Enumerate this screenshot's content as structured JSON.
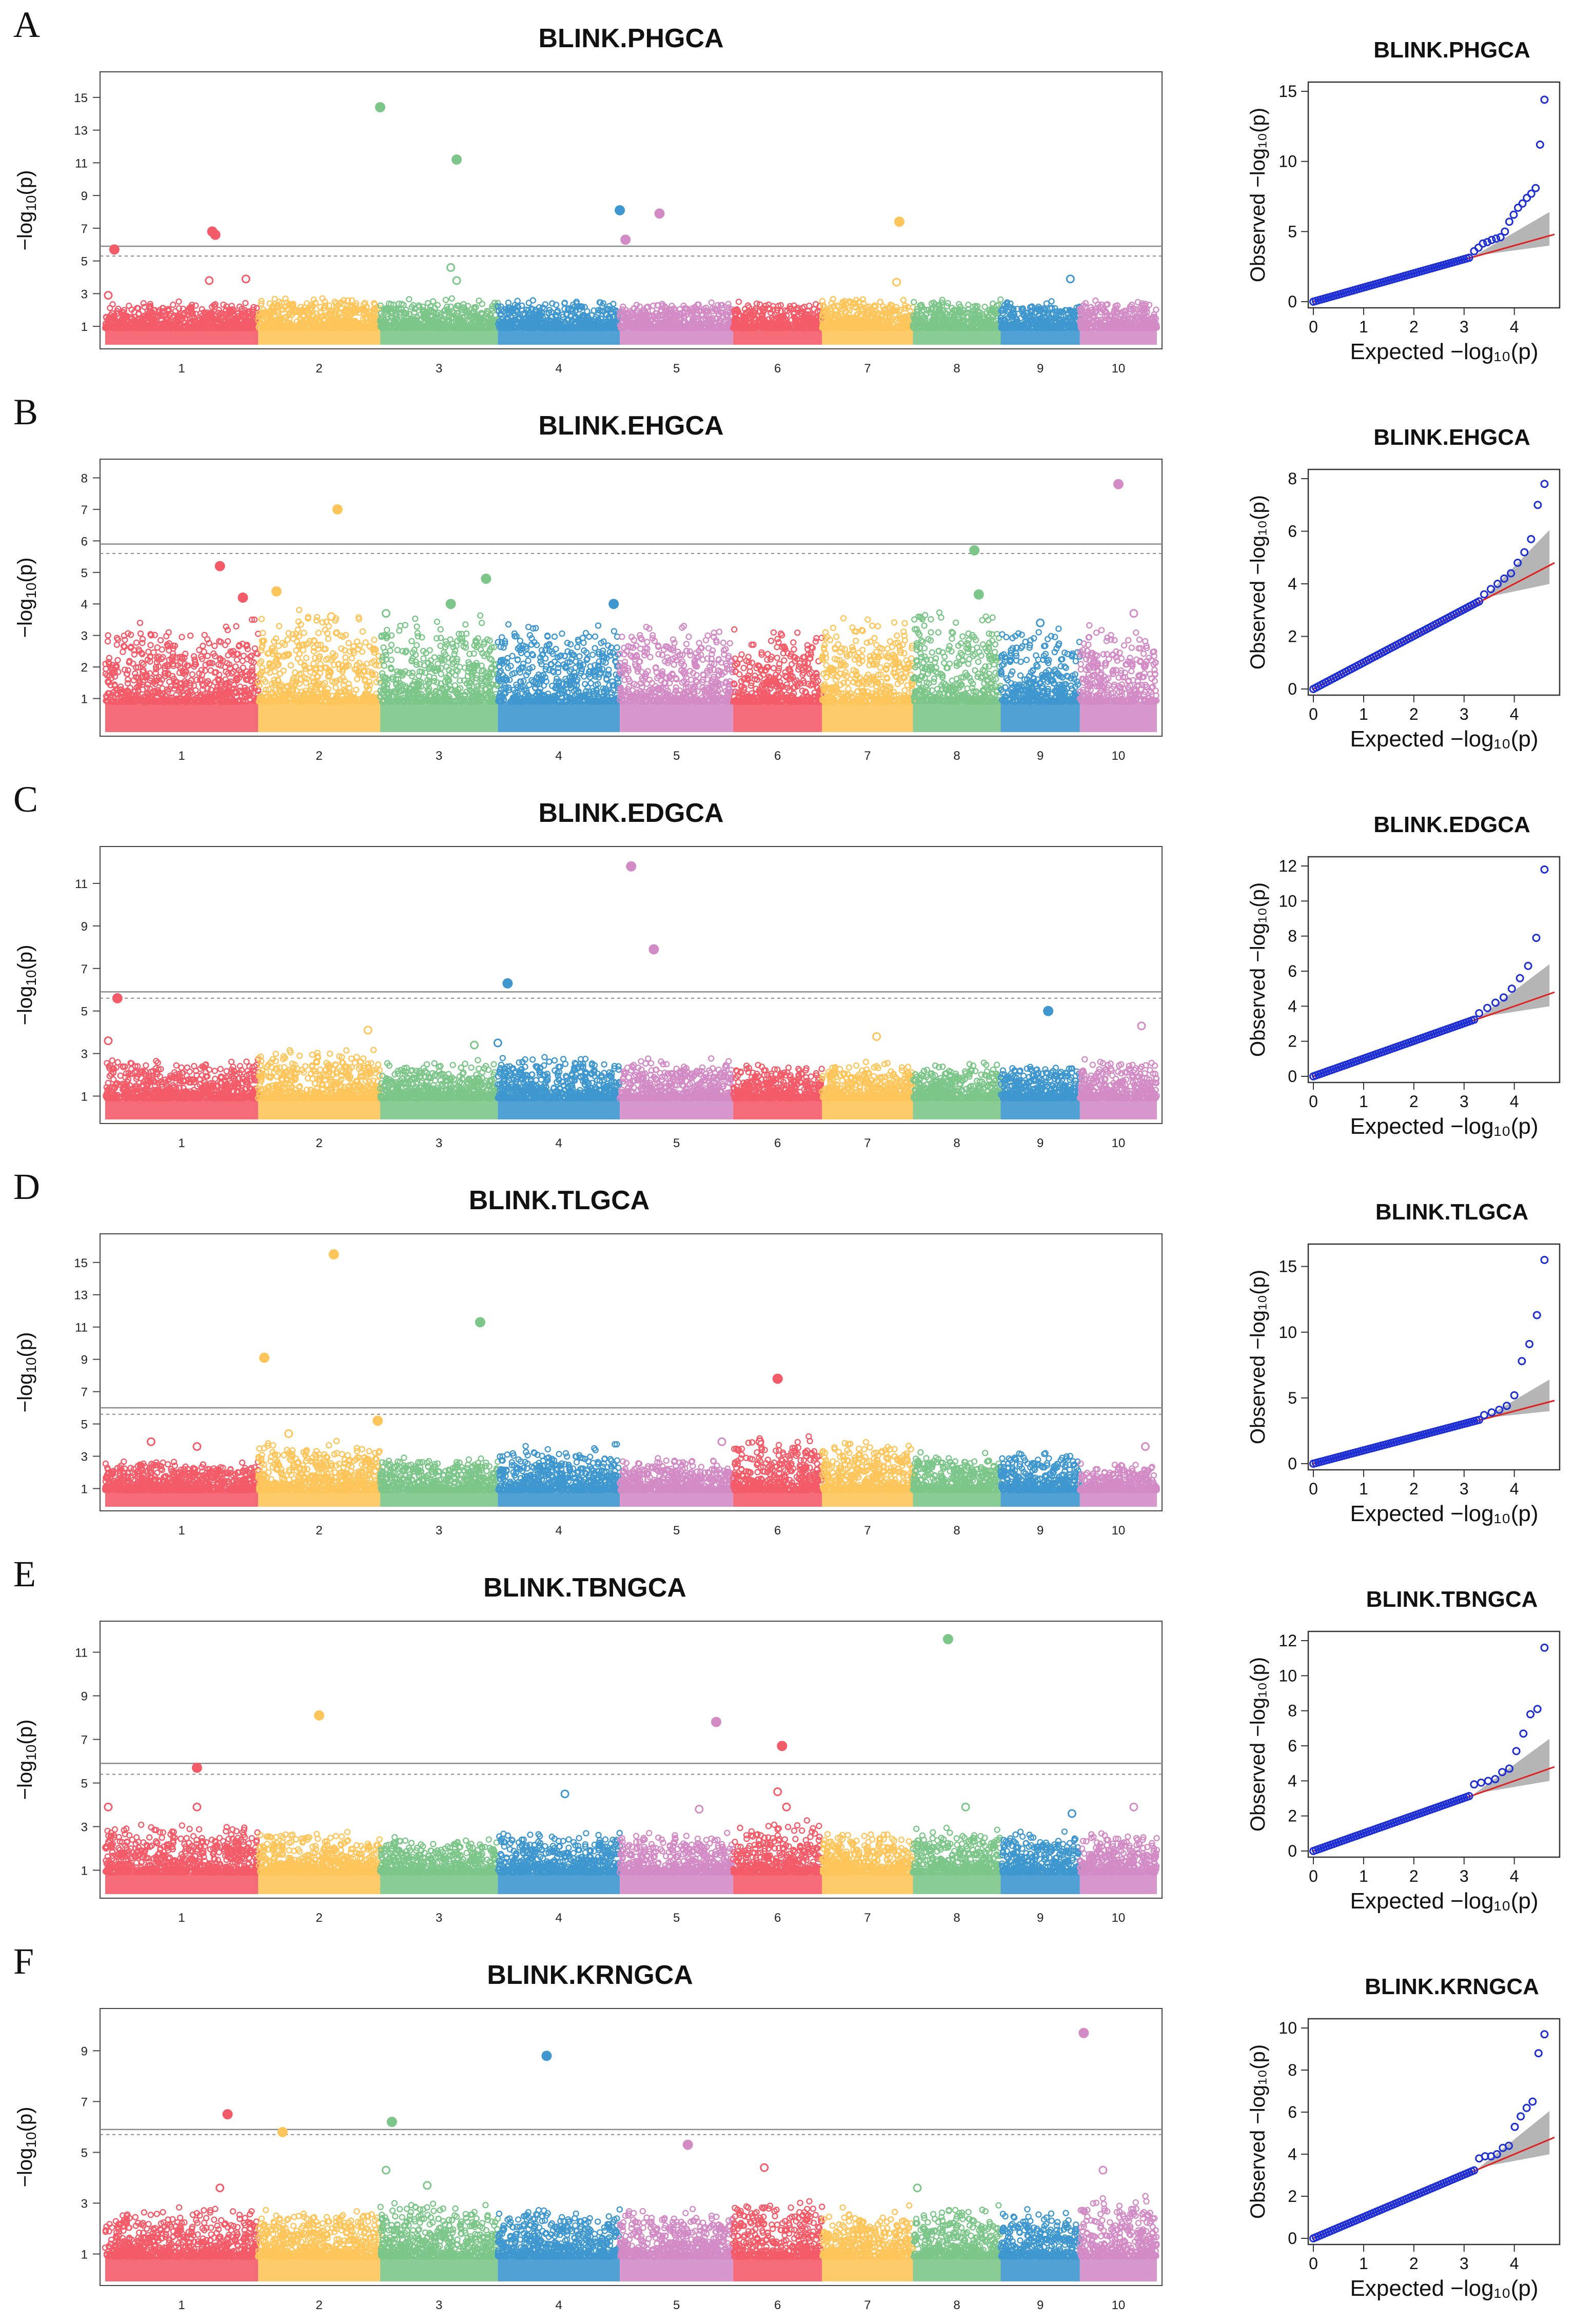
{
  "figure": {
    "panel_count": 6
  },
  "colors": {
    "chromosomes": [
      "#f45b69",
      "#fdc55a",
      "#7cc68a",
      "#3f97cf",
      "#d38bc6",
      "#f45b69",
      "#fdc55a",
      "#7cc68a",
      "#3f97cf",
      "#d38bc6"
    ],
    "qq_points": "#1f2fd6",
    "qq_line": "#e02020",
    "qq_band": "#a8a8a8",
    "threshold": "#8a8a8a"
  },
  "shared": {
    "manhattan_ylabel_prefix": "−log",
    "manhattan_ylabel_suffix": "(p)",
    "qq_xlabel": "Expected −log₁₀(p)",
    "qq_ylabel": "Observed −log₁₀(p)",
    "chromosomes": [
      "1",
      "2",
      "3",
      "4",
      "5",
      "6",
      "7",
      "8",
      "9",
      "10"
    ]
  },
  "chart_data": [
    {
      "panel": "A",
      "title": "BLINK.PHGCA",
      "type": "scatter",
      "subtype": "manhattan",
      "xlabel": "",
      "ylabel": "−log10(p)",
      "ylim": [
        0,
        16
      ],
      "yticks": [
        1,
        3,
        5,
        7,
        9,
        11,
        13,
        15
      ],
      "thresholds": [
        5.9,
        5.3
      ],
      "chromosome_tops": [
        2.3,
        2.5,
        2.5,
        2.4,
        2.3,
        2.3,
        2.5,
        2.5,
        2.3,
        2.4
      ],
      "top_hits": [
        {
          "chr": 1,
          "pos": 0.06,
          "y": 5.7
        },
        {
          "chr": 1,
          "pos": 0.7,
          "y": 6.8
        },
        {
          "chr": 1,
          "pos": 0.72,
          "y": 6.6
        },
        {
          "chr": 3,
          "pos": 0.0,
          "y": 14.4
        },
        {
          "chr": 3,
          "pos": 0.65,
          "y": 11.2
        },
        {
          "chr": 4,
          "pos": 1.0,
          "y": 8.1
        },
        {
          "chr": 5,
          "pos": 0.05,
          "y": 6.3
        },
        {
          "chr": 5,
          "pos": 0.35,
          "y": 7.9
        },
        {
          "chr": 7,
          "pos": 0.85,
          "y": 7.4
        }
      ],
      "suggestive_hits": [
        {
          "chr": 1,
          "pos": 0.02,
          "y": 2.9
        },
        {
          "chr": 1,
          "pos": 0.68,
          "y": 3.8
        },
        {
          "chr": 1,
          "pos": 0.92,
          "y": 3.9
        },
        {
          "chr": 3,
          "pos": 0.6,
          "y": 4.6
        },
        {
          "chr": 3,
          "pos": 0.65,
          "y": 3.8
        },
        {
          "chr": 7,
          "pos": 0.82,
          "y": 3.7
        },
        {
          "chr": 9,
          "pos": 0.88,
          "y": 3.9
        }
      ],
      "qq": {
        "title": "BLINK.PHGCA",
        "xlim": [
          0,
          4.8
        ],
        "ylim": [
          0,
          15
        ],
        "xticks": [
          0,
          1,
          2,
          3,
          4
        ],
        "yticks": [
          0,
          5,
          10,
          15
        ],
        "inflection_x": 3.1,
        "tail": [
          3.6,
          3.85,
          4.15,
          4.25,
          4.4,
          4.5,
          4.6,
          5.0,
          5.7,
          6.2,
          6.7,
          7.0,
          7.4,
          7.7,
          8.1,
          11.2,
          14.4
        ]
      }
    },
    {
      "panel": "B",
      "title": "BLINK.EHGCA",
      "type": "scatter",
      "subtype": "manhattan",
      "xlabel": "",
      "ylabel": "−log10(p)",
      "ylim": [
        0,
        8.3
      ],
      "yticks": [
        1,
        2,
        3,
        4,
        5,
        6,
        7,
        8
      ],
      "thresholds": [
        5.9,
        5.6
      ],
      "chromosome_tops": [
        3.1,
        3.4,
        3.2,
        3.1,
        3.1,
        3.0,
        3.2,
        3.5,
        2.9,
        3.0
      ],
      "top_hits": [
        {
          "chr": 1,
          "pos": 0.75,
          "y": 5.2
        },
        {
          "chr": 1,
          "pos": 0.9,
          "y": 4.2
        },
        {
          "chr": 2,
          "pos": 0.15,
          "y": 4.4
        },
        {
          "chr": 2,
          "pos": 0.65,
          "y": 7.0
        },
        {
          "chr": 3,
          "pos": 0.9,
          "y": 4.8
        },
        {
          "chr": 3,
          "pos": 0.6,
          "y": 4.0
        },
        {
          "chr": 4,
          "pos": 0.95,
          "y": 4.0
        },
        {
          "chr": 8,
          "pos": 0.7,
          "y": 5.7
        },
        {
          "chr": 8,
          "pos": 0.75,
          "y": 4.3
        },
        {
          "chr": 10,
          "pos": 0.5,
          "y": 7.8
        }
      ],
      "suggestive_hits": [
        {
          "chr": 3,
          "pos": 0.05,
          "y": 3.7
        },
        {
          "chr": 2,
          "pos": 0.6,
          "y": 3.6
        },
        {
          "chr": 10,
          "pos": 0.7,
          "y": 3.7
        },
        {
          "chr": 9,
          "pos": 0.5,
          "y": 3.4
        }
      ],
      "qq": {
        "title": "BLINK.EHGCA",
        "xlim": [
          0,
          4.8
        ],
        "ylim": [
          0,
          8
        ],
        "xticks": [
          0,
          1,
          2,
          3,
          4
        ],
        "yticks": [
          0,
          2,
          4,
          6,
          8
        ],
        "inflection_x": 3.3,
        "tail": [
          3.6,
          3.8,
          4.0,
          4.2,
          4.4,
          4.8,
          5.2,
          5.7,
          7.0,
          7.8
        ]
      }
    },
    {
      "panel": "C",
      "title": "BLINK.EDGCA",
      "type": "scatter",
      "subtype": "manhattan",
      "xlabel": "",
      "ylabel": "−log10(p)",
      "ylim": [
        0,
        12.3
      ],
      "yticks": [
        1,
        3,
        5,
        7,
        9,
        11
      ],
      "thresholds": [
        5.9,
        5.6
      ],
      "chromosome_tops": [
        2.5,
        2.9,
        2.4,
        2.6,
        2.5,
        2.3,
        2.4,
        2.4,
        2.3,
        2.5
      ],
      "top_hits": [
        {
          "chr": 1,
          "pos": 0.08,
          "y": 5.6
        },
        {
          "chr": 4,
          "pos": 0.08,
          "y": 6.3
        },
        {
          "chr": 5,
          "pos": 0.1,
          "y": 11.8
        },
        {
          "chr": 5,
          "pos": 0.3,
          "y": 7.9
        },
        {
          "chr": 9,
          "pos": 0.6,
          "y": 5.0
        }
      ],
      "suggestive_hits": [
        {
          "chr": 1,
          "pos": 0.02,
          "y": 3.6
        },
        {
          "chr": 2,
          "pos": 0.9,
          "y": 4.1
        },
        {
          "chr": 4,
          "pos": 0.0,
          "y": 3.5
        },
        {
          "chr": 7,
          "pos": 0.6,
          "y": 3.8
        },
        {
          "chr": 10,
          "pos": 0.8,
          "y": 4.3
        },
        {
          "chr": 3,
          "pos": 0.8,
          "y": 3.4
        }
      ],
      "qq": {
        "title": "BLINK.EDGCA",
        "xlim": [
          0,
          4.8
        ],
        "ylim": [
          0,
          12
        ],
        "xticks": [
          0,
          1,
          2,
          3,
          4
        ],
        "yticks": [
          0,
          2,
          4,
          6,
          8,
          10,
          12
        ],
        "inflection_x": 3.2,
        "tail": [
          3.6,
          3.9,
          4.2,
          4.5,
          5.0,
          5.6,
          6.3,
          7.9,
          11.8
        ]
      }
    },
    {
      "panel": "D",
      "title": "BLINK.TLGCA",
      "type": "scatter",
      "subtype": "manhattan",
      "xlabel": "",
      "ylabel": "−log10(p)",
      "ylim": [
        0,
        16.2
      ],
      "yticks": [
        1,
        3,
        5,
        7,
        9,
        11,
        13,
        15
      ],
      "thresholds": [
        6.0,
        5.6
      ],
      "chromosome_tops": [
        2.5,
        3.5,
        2.7,
        3.3,
        2.6,
        3.7,
        3.6,
        3.0,
        3.0,
        2.4
      ],
      "top_hits": [
        {
          "chr": 2,
          "pos": 0.05,
          "y": 9.1
        },
        {
          "chr": 2,
          "pos": 0.62,
          "y": 15.5
        },
        {
          "chr": 2,
          "pos": 0.98,
          "y": 5.2
        },
        {
          "chr": 3,
          "pos": 0.85,
          "y": 11.3
        },
        {
          "chr": 6,
          "pos": 0.5,
          "y": 7.8
        }
      ],
      "suggestive_hits": [
        {
          "chr": 1,
          "pos": 0.3,
          "y": 3.9
        },
        {
          "chr": 1,
          "pos": 0.6,
          "y": 3.6
        },
        {
          "chr": 2,
          "pos": 0.25,
          "y": 4.4
        },
        {
          "chr": 5,
          "pos": 0.9,
          "y": 3.9
        },
        {
          "chr": 6,
          "pos": 0.3,
          "y": 3.9
        },
        {
          "chr": 10,
          "pos": 0.85,
          "y": 3.6
        }
      ],
      "qq": {
        "title": "BLINK.TLGCA",
        "xlim": [
          0,
          4.8
        ],
        "ylim": [
          0,
          16
        ],
        "xticks": [
          0,
          1,
          2,
          3,
          4
        ],
        "yticks": [
          0,
          5,
          10,
          15
        ],
        "inflection_x": 3.3,
        "tail": [
          3.7,
          3.9,
          4.1,
          4.4,
          5.2,
          7.8,
          9.1,
          11.3,
          15.5
        ]
      }
    },
    {
      "panel": "E",
      "title": "BLINK.TBNGCA",
      "type": "scatter",
      "subtype": "manhattan",
      "xlabel": "",
      "ylabel": "−log10(p)",
      "ylim": [
        0,
        12
      ],
      "yticks": [
        1,
        3,
        5,
        7,
        9,
        11
      ],
      "thresholds": [
        5.9,
        5.4
      ],
      "chromosome_tops": [
        2.8,
        2.5,
        2.3,
        2.5,
        2.5,
        2.9,
        2.5,
        2.7,
        2.5,
        2.5
      ],
      "top_hits": [
        {
          "chr": 1,
          "pos": 0.6,
          "y": 5.7
        },
        {
          "chr": 2,
          "pos": 0.5,
          "y": 8.1
        },
        {
          "chr": 5,
          "pos": 0.85,
          "y": 7.8
        },
        {
          "chr": 6,
          "pos": 0.55,
          "y": 6.7
        },
        {
          "chr": 8,
          "pos": 0.4,
          "y": 11.6
        }
      ],
      "suggestive_hits": [
        {
          "chr": 1,
          "pos": 0.02,
          "y": 3.9
        },
        {
          "chr": 1,
          "pos": 0.6,
          "y": 3.9
        },
        {
          "chr": 4,
          "pos": 0.55,
          "y": 4.5
        },
        {
          "chr": 5,
          "pos": 0.7,
          "y": 3.8
        },
        {
          "chr": 6,
          "pos": 0.5,
          "y": 4.6
        },
        {
          "chr": 6,
          "pos": 0.6,
          "y": 3.9
        },
        {
          "chr": 8,
          "pos": 0.6,
          "y": 3.9
        },
        {
          "chr": 9,
          "pos": 0.9,
          "y": 3.6
        },
        {
          "chr": 10,
          "pos": 0.7,
          "y": 3.9
        }
      ],
      "qq": {
        "title": "BLINK.TBNGCA",
        "xlim": [
          0,
          4.8
        ],
        "ylim": [
          0,
          12
        ],
        "xticks": [
          0,
          1,
          2,
          3,
          4
        ],
        "yticks": [
          0,
          2,
          4,
          6,
          8,
          10,
          12
        ],
        "inflection_x": 3.1,
        "tail": [
          3.8,
          3.9,
          4.0,
          4.1,
          4.5,
          4.7,
          5.7,
          6.7,
          7.8,
          8.1,
          11.6
        ]
      }
    },
    {
      "panel": "F",
      "title": "BLINK.KRNGCA",
      "type": "scatter",
      "subtype": "manhattan",
      "xlabel": "",
      "ylabel": "−log10(p)",
      "ylim": [
        0,
        10.3
      ],
      "yticks": [
        1,
        3,
        5,
        7,
        9
      ],
      "thresholds": [
        5.9,
        5.7
      ],
      "chromosome_tops": [
        2.6,
        2.5,
        2.8,
        2.6,
        2.5,
        2.9,
        2.6,
        2.6,
        2.5,
        2.9
      ],
      "top_hits": [
        {
          "chr": 1,
          "pos": 0.8,
          "y": 6.5
        },
        {
          "chr": 2,
          "pos": 0.2,
          "y": 5.8
        },
        {
          "chr": 3,
          "pos": 0.1,
          "y": 6.2
        },
        {
          "chr": 4,
          "pos": 0.4,
          "y": 8.8
        },
        {
          "chr": 5,
          "pos": 0.6,
          "y": 5.3
        },
        {
          "chr": 10,
          "pos": 0.05,
          "y": 9.7
        }
      ],
      "suggestive_hits": [
        {
          "chr": 1,
          "pos": 0.75,
          "y": 3.6
        },
        {
          "chr": 3,
          "pos": 0.05,
          "y": 4.3
        },
        {
          "chr": 3,
          "pos": 0.4,
          "y": 3.7
        },
        {
          "chr": 6,
          "pos": 0.35,
          "y": 4.4
        },
        {
          "chr": 8,
          "pos": 0.05,
          "y": 3.6
        },
        {
          "chr": 10,
          "pos": 0.3,
          "y": 4.3
        }
      ],
      "qq": {
        "title": "BLINK.KRNGCA",
        "xlim": [
          0,
          4.8
        ],
        "ylim": [
          0,
          10
        ],
        "xticks": [
          0,
          1,
          2,
          3,
          4
        ],
        "yticks": [
          0,
          2,
          4,
          6,
          8,
          10
        ],
        "inflection_x": 3.2,
        "tail": [
          3.8,
          3.9,
          3.9,
          4.0,
          4.3,
          4.4,
          5.3,
          5.8,
          6.2,
          6.5,
          8.8,
          9.7
        ]
      }
    }
  ]
}
